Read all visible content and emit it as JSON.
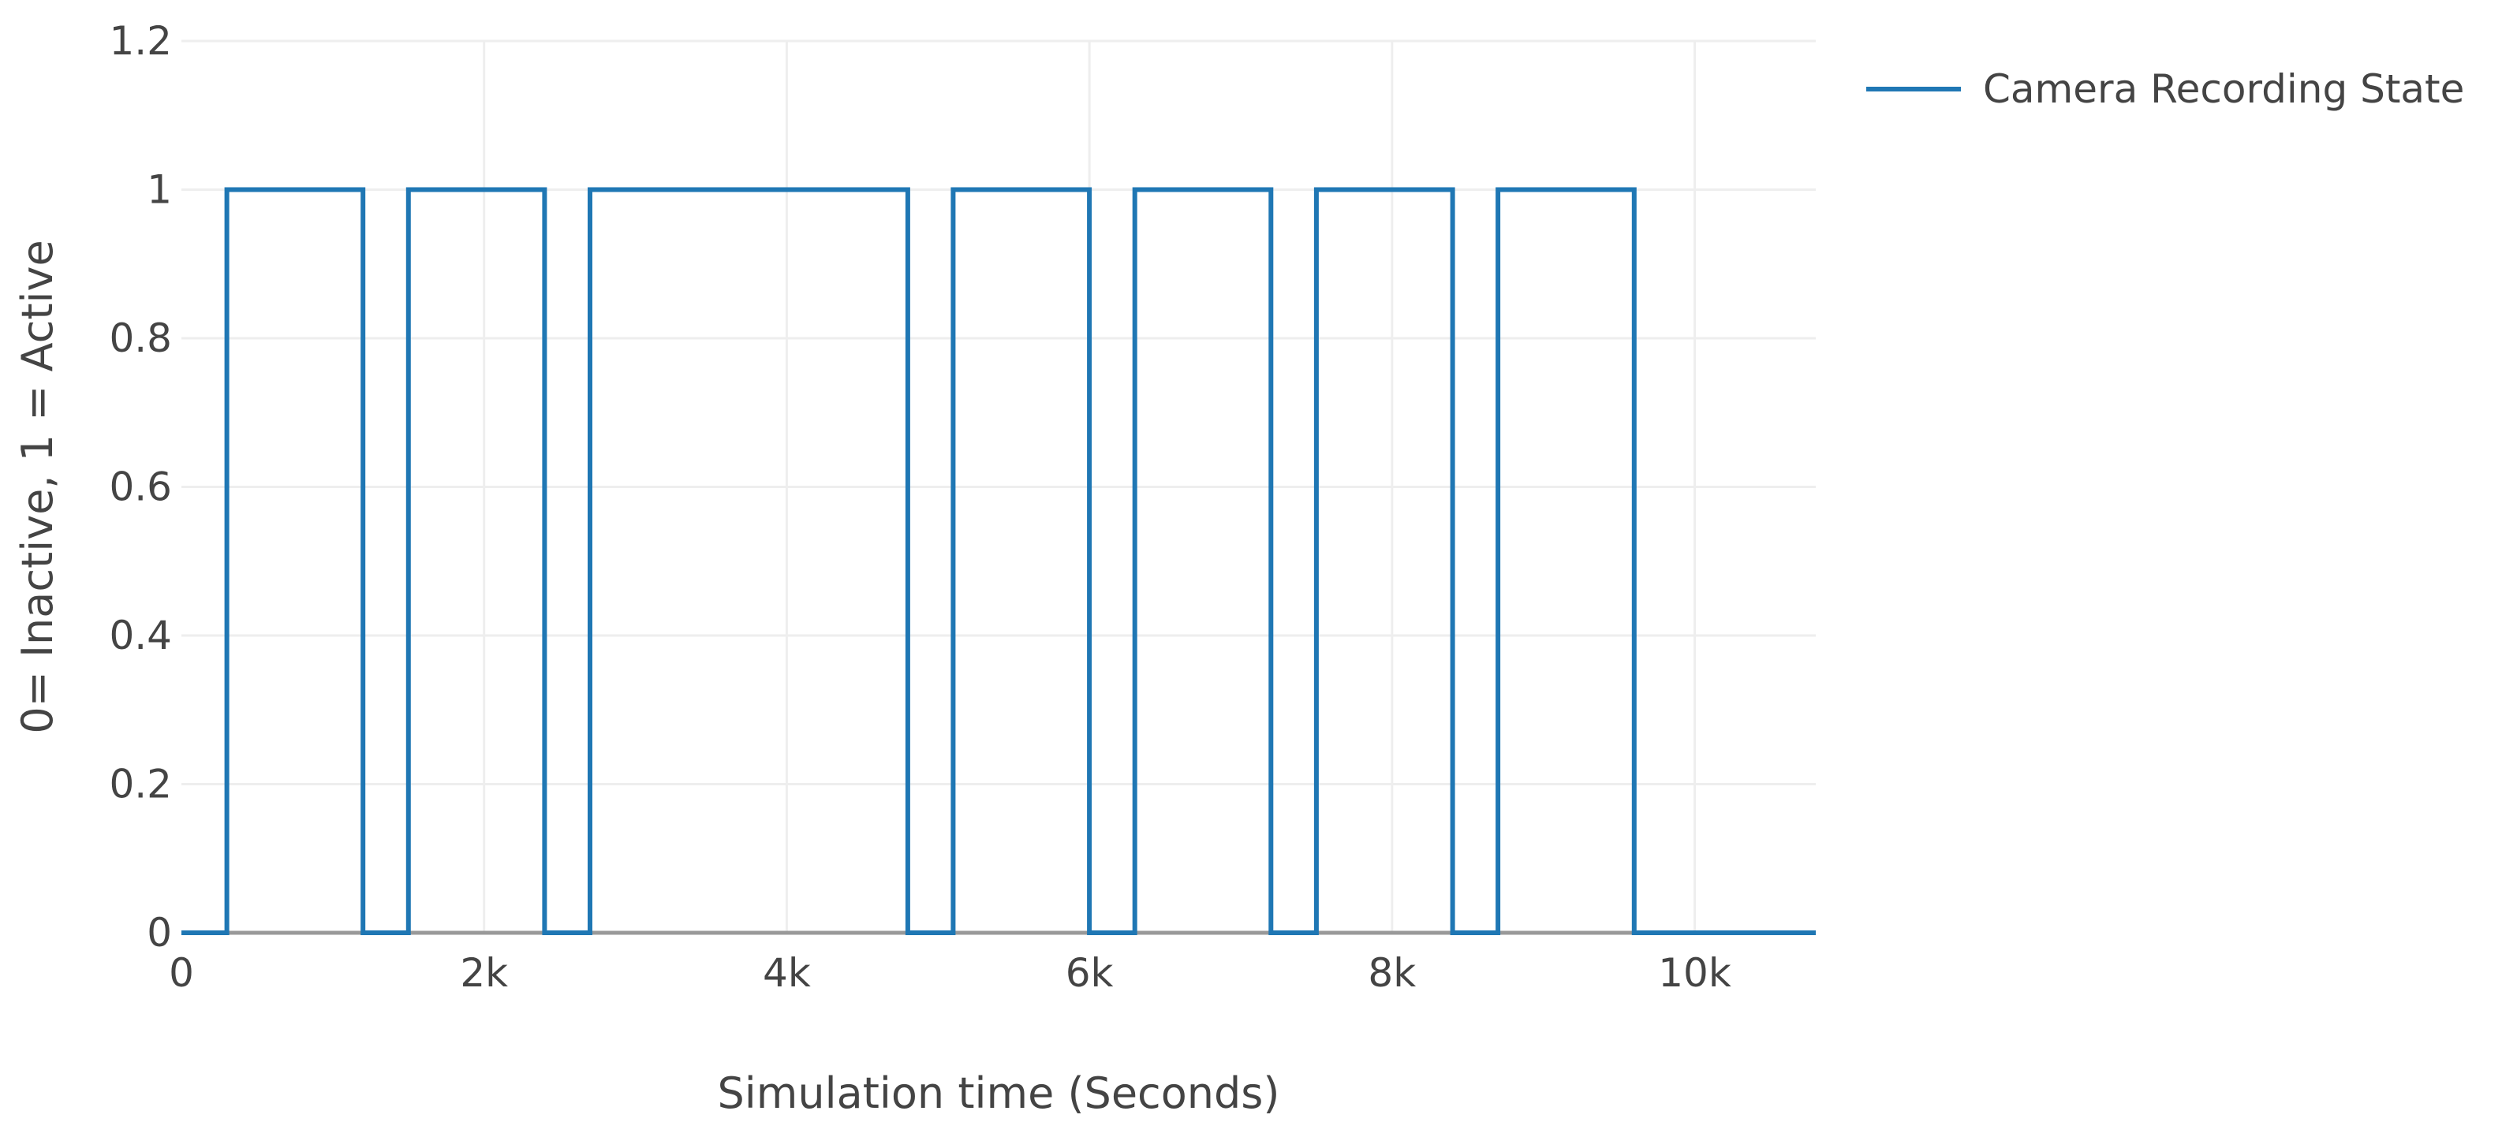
{
  "chart_data": {
    "type": "line",
    "line_shape": "step",
    "title": "",
    "xlabel": "Simulation time (Seconds)",
    "ylabel": "0= Inactive, 1 = Active",
    "xlim": [
      0,
      10800
    ],
    "ylim": [
      0,
      1.2
    ],
    "x_ticks": [
      0,
      2000,
      4000,
      6000,
      8000,
      10000
    ],
    "x_tick_labels": [
      "0",
      "2k",
      "4k",
      "6k",
      "8k",
      "10k"
    ],
    "y_ticks": [
      0,
      0.2,
      0.4,
      0.6,
      0.8,
      1,
      1.2
    ],
    "y_tick_labels": [
      "0",
      "0.2",
      "0.4",
      "0.6",
      "0.8",
      "1",
      "1.2"
    ],
    "grid": true,
    "legend_position": "top-right",
    "colors": {
      "series": "#1f77b4",
      "grid": "#eeeeee",
      "zero_line": "#999999",
      "text": "#444444"
    },
    "series": [
      {
        "name": "Camera Recording State",
        "x": [
          0,
          300,
          300,
          1200,
          1200,
          1500,
          1500,
          2400,
          2400,
          2700,
          2700,
          3900,
          3900,
          4800,
          4800,
          5100,
          5100,
          6000,
          6000,
          6300,
          6300,
          7200,
          7200,
          7500,
          7500,
          8400,
          8400,
          8700,
          8700,
          9600,
          9600,
          10800
        ],
        "y": [
          0,
          0,
          1,
          1,
          0,
          0,
          1,
          1,
          0,
          0,
          1,
          1,
          1,
          1,
          0,
          0,
          1,
          1,
          0,
          0,
          1,
          1,
          0,
          0,
          1,
          1,
          0,
          0,
          1,
          1,
          0,
          0
        ]
      }
    ]
  }
}
